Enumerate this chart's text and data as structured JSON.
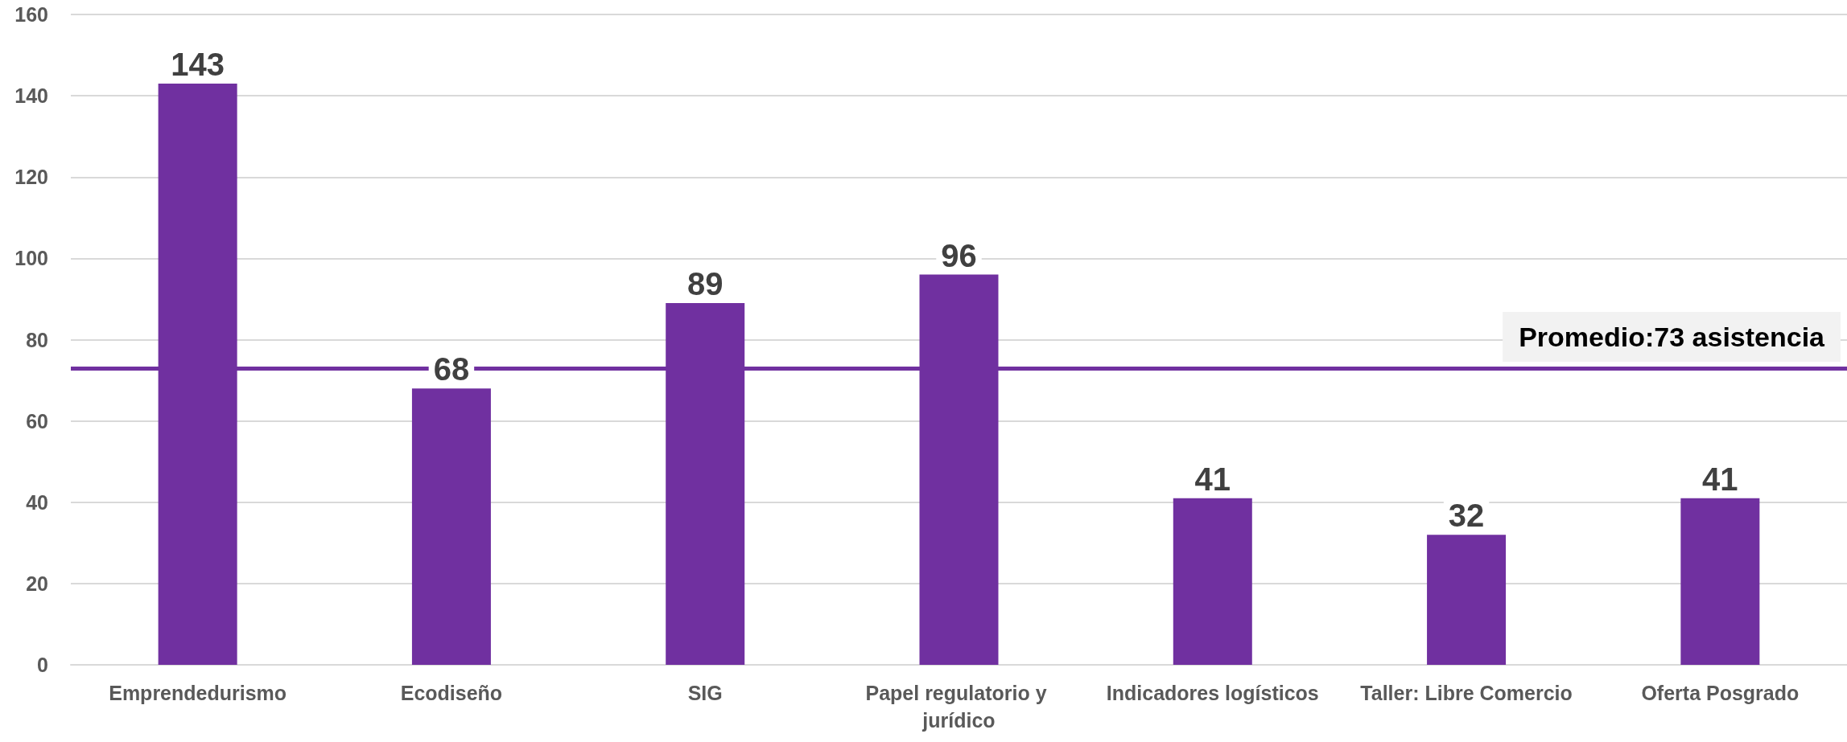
{
  "chart_data": {
    "type": "bar",
    "categories": [
      "Emprendedurismo",
      "Ecodiseño",
      "SIG",
      "Papel regulatorio y jurídico",
      "Indicadores logísticos",
      "Taller: Libre Comercio",
      "Oferta Posgrado"
    ],
    "values": [
      143,
      68,
      89,
      96,
      41,
      32,
      41
    ],
    "color": "#7030a0",
    "ylim": [
      0,
      160
    ],
    "yticks": [
      0,
      20,
      40,
      60,
      80,
      100,
      120,
      140,
      160
    ],
    "grid": "y",
    "data_labels": true,
    "ref_lines": [
      {
        "axis": "y",
        "value": 73,
        "label": "Promedio:73 asistencia",
        "color": "#7030a0",
        "line_style": "solid"
      }
    ]
  }
}
